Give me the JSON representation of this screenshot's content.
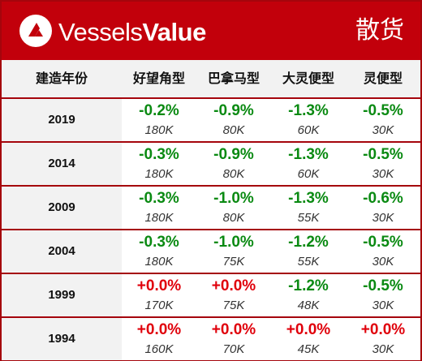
{
  "header": {
    "brand_part1": "Vessels",
    "brand_part2": "Value",
    "category": "散货",
    "bg_color": "#c2000b",
    "logo_icon": "vesselsvalue-logo-icon"
  },
  "columns": {
    "year": "建造年份",
    "c1": "好望角型",
    "c2": "巴拿马型",
    "c3": "大灵便型",
    "c4": "灵便型"
  },
  "colors": {
    "negative": "#0a8a12",
    "positive": "#e0000b",
    "border": "#a5050c"
  },
  "rows": [
    {
      "year": "2019",
      "cells": [
        {
          "change": "-0.2%",
          "dwt": "180K",
          "dir": "neg"
        },
        {
          "change": "-0.9%",
          "dwt": "80K",
          "dir": "neg"
        },
        {
          "change": "-1.3%",
          "dwt": "60K",
          "dir": "neg"
        },
        {
          "change": "-0.5%",
          "dwt": "30K",
          "dir": "neg"
        }
      ]
    },
    {
      "year": "2014",
      "cells": [
        {
          "change": "-0.3%",
          "dwt": "180K",
          "dir": "neg"
        },
        {
          "change": "-0.9%",
          "dwt": "80K",
          "dir": "neg"
        },
        {
          "change": "-1.3%",
          "dwt": "60K",
          "dir": "neg"
        },
        {
          "change": "-0.5%",
          "dwt": "30K",
          "dir": "neg"
        }
      ]
    },
    {
      "year": "2009",
      "cells": [
        {
          "change": "-0.3%",
          "dwt": "180K",
          "dir": "neg"
        },
        {
          "change": "-1.0%",
          "dwt": "80K",
          "dir": "neg"
        },
        {
          "change": "-1.3%",
          "dwt": "55K",
          "dir": "neg"
        },
        {
          "change": "-0.6%",
          "dwt": "30K",
          "dir": "neg"
        }
      ]
    },
    {
      "year": "2004",
      "cells": [
        {
          "change": "-0.3%",
          "dwt": "180K",
          "dir": "neg"
        },
        {
          "change": "-1.0%",
          "dwt": "75K",
          "dir": "neg"
        },
        {
          "change": "-1.2%",
          "dwt": "55K",
          "dir": "neg"
        },
        {
          "change": "-0.5%",
          "dwt": "30K",
          "dir": "neg"
        }
      ]
    },
    {
      "year": "1999",
      "cells": [
        {
          "change": "+0.0%",
          "dwt": "170K",
          "dir": "pos"
        },
        {
          "change": "+0.0%",
          "dwt": "75K",
          "dir": "pos"
        },
        {
          "change": "-1.2%",
          "dwt": "48K",
          "dir": "neg"
        },
        {
          "change": "-0.5%",
          "dwt": "30K",
          "dir": "neg"
        }
      ]
    },
    {
      "year": "1994",
      "cells": [
        {
          "change": "+0.0%",
          "dwt": "160K",
          "dir": "pos"
        },
        {
          "change": "+0.0%",
          "dwt": "70K",
          "dir": "pos"
        },
        {
          "change": "+0.0%",
          "dwt": "45K",
          "dir": "pos"
        },
        {
          "change": "+0.0%",
          "dwt": "30K",
          "dir": "pos"
        }
      ]
    }
  ]
}
